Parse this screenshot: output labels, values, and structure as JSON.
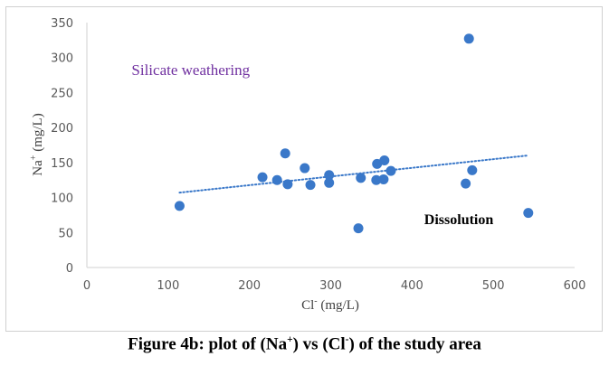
{
  "chart_data": {
    "type": "scatter",
    "title": "",
    "xlabel": "Cl",
    "xlabel_sup": "-",
    "xlabel_unit": " (mg/L)",
    "ylabel": "Na",
    "ylabel_sup": "+",
    "ylabel_unit": " (mg/L)",
    "xlim": [
      0,
      600
    ],
    "ylim": [
      0,
      350
    ],
    "xticks": [
      0,
      100,
      200,
      300,
      400,
      500,
      600
    ],
    "yticks": [
      0,
      50,
      100,
      150,
      200,
      250,
      300,
      350
    ],
    "grid": false,
    "series": [
      {
        "name": "samples",
        "color": "#3a78c9",
        "points": [
          {
            "x": 114,
            "y": 88
          },
          {
            "x": 216,
            "y": 129
          },
          {
            "x": 234,
            "y": 125
          },
          {
            "x": 244,
            "y": 163
          },
          {
            "x": 247,
            "y": 119
          },
          {
            "x": 268,
            "y": 142
          },
          {
            "x": 275,
            "y": 118
          },
          {
            "x": 298,
            "y": 132
          },
          {
            "x": 298,
            "y": 121
          },
          {
            "x": 334,
            "y": 56
          },
          {
            "x": 337,
            "y": 128
          },
          {
            "x": 356,
            "y": 125
          },
          {
            "x": 357,
            "y": 148
          },
          {
            "x": 365,
            "y": 126
          },
          {
            "x": 366,
            "y": 153
          },
          {
            "x": 374,
            "y": 138
          },
          {
            "x": 466,
            "y": 120
          },
          {
            "x": 470,
            "y": 327
          },
          {
            "x": 474,
            "y": 139
          },
          {
            "x": 543,
            "y": 78
          }
        ]
      }
    ],
    "trendline": {
      "type": "linear",
      "style": "dotted",
      "color": "#3a78c9",
      "x": [
        114,
        542
      ],
      "y": [
        107,
        160
      ]
    },
    "annotations": [
      {
        "text": "Silicate weathering",
        "x": 55,
        "y": 275,
        "color": "#7030a0",
        "bold": false
      },
      {
        "text": "Dissolution",
        "x": 415,
        "y": 62,
        "color": "#000000",
        "bold": true
      }
    ]
  },
  "caption": {
    "prefix": "Figure 4b: plot of (Na",
    "sup1": "+",
    "mid": ") vs (Cl",
    "sup2": "-",
    "suffix": ") of the study area"
  }
}
